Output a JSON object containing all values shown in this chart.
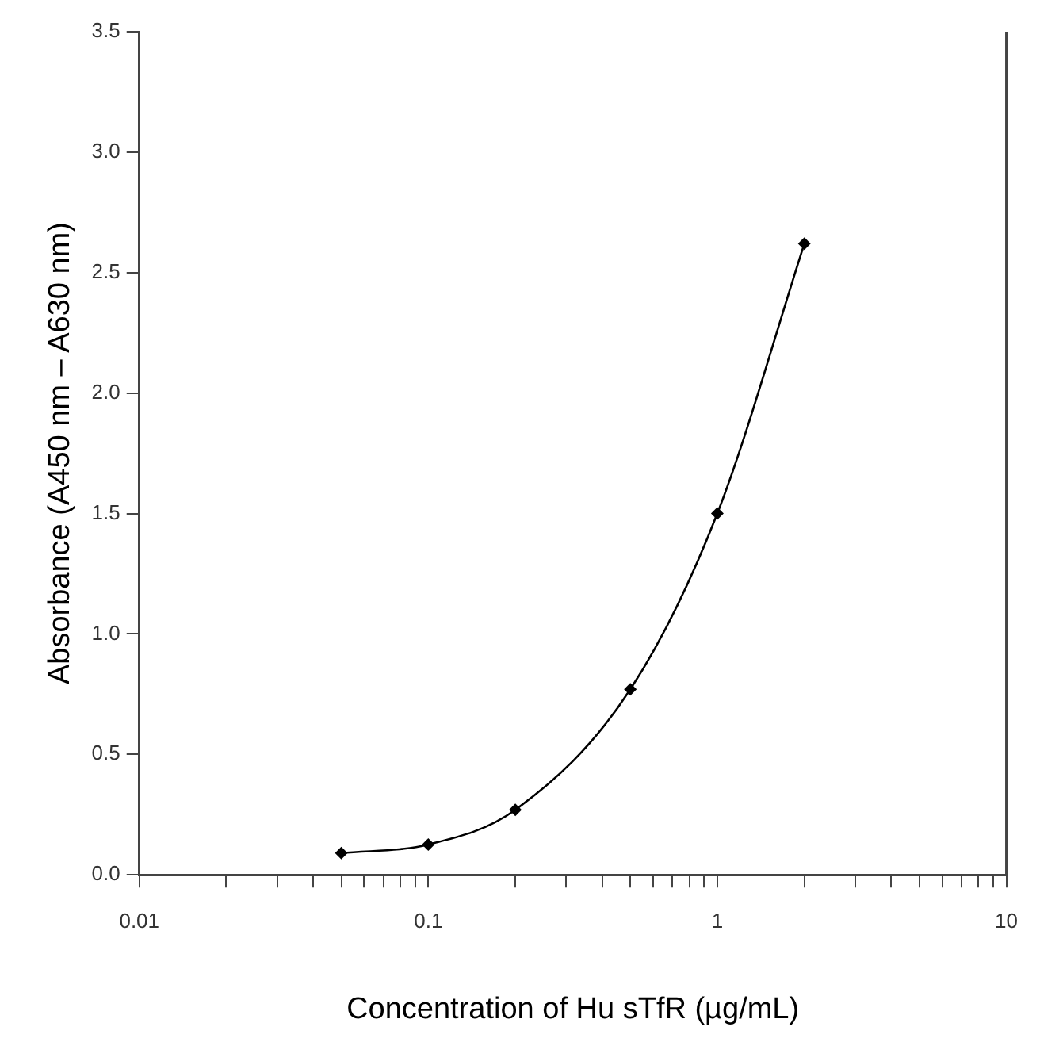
{
  "chart_data": {
    "type": "line",
    "xlabel": "Concentration of Hu sTfR (µg/mL)",
    "ylabel": "Absorbance (A450 nm – A630 nm)",
    "log": "x",
    "x": [
      0.05,
      0.1,
      0.2,
      0.5,
      1,
      2
    ],
    "series": [
      {
        "color": "#000000",
        "values": [
          0.09,
          0.126,
          0.27,
          0.77,
          1.5,
          2.62
        ]
      }
    ],
    "xlim": [
      0.01,
      10
    ],
    "xticks": [
      0.01,
      {
        "value": 0.02,
        "label": null
      },
      {
        "value": 0.03,
        "label": null
      },
      {
        "value": 0.04,
        "label": null
      },
      {
        "value": 0.05,
        "label": null
      },
      {
        "value": 0.06,
        "label": null
      },
      {
        "value": 0.07,
        "label": null
      },
      {
        "value": 0.08,
        "label": null
      },
      {
        "value": 0.09,
        "label": null
      },
      0.1,
      {
        "value": 0.2,
        "label": null
      },
      {
        "value": 0.3,
        "label": null
      },
      {
        "value": 0.4,
        "label": null
      },
      {
        "value": 0.5,
        "label": null
      },
      {
        "value": 0.6,
        "label": null
      },
      {
        "value": 0.7,
        "label": null
      },
      {
        "value": 0.8,
        "label": null
      },
      {
        "value": 0.9,
        "label": null
      },
      1,
      {
        "value": 2,
        "label": null
      },
      {
        "value": 3,
        "label": null
      },
      {
        "value": 4,
        "label": null
      },
      {
        "value": 5,
        "label": null
      },
      {
        "value": 6,
        "label": null
      },
      {
        "value": 7,
        "label": null
      },
      {
        "value": 8,
        "label": null
      },
      {
        "value": 9,
        "label": null
      },
      10
    ],
    "ylim": [
      0,
      3.5
    ],
    "yticks": [
      {
        "value": 0,
        "label": "0.0"
      },
      0.5,
      {
        "value": 1,
        "label": "1.0"
      },
      1.5,
      {
        "value": 2,
        "label": "2.0"
      },
      2.5,
      {
        "value": 3,
        "label": "3.0"
      },
      3.5
    ],
    "grid": false,
    "legend": false,
    "marker": "diamond",
    "line_style": "solid"
  }
}
